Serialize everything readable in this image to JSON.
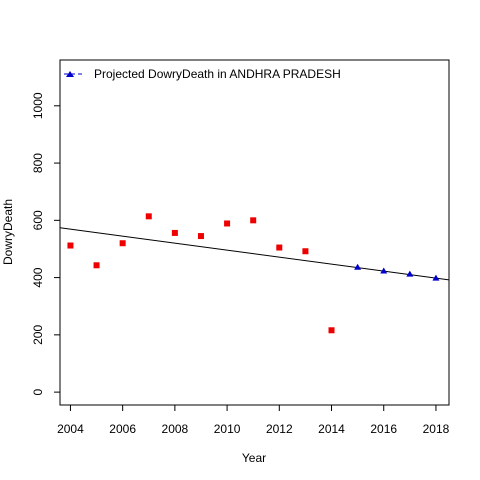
{
  "chart_data": {
    "type": "scatter",
    "title": "",
    "xlabel": "Year",
    "ylabel": "DowryDeath",
    "xlim": [
      2003.6,
      2018.5
    ],
    "ylim": [
      -45,
      1160
    ],
    "x_ticks": [
      2004,
      2006,
      2008,
      2010,
      2012,
      2014,
      2016,
      2018
    ],
    "y_ticks": [
      0,
      200,
      400,
      600,
      800,
      1000
    ],
    "grid": false,
    "legend_position": "top-left",
    "series": [
      {
        "marker": "square",
        "color": "#ee0000",
        "x": [
          2004,
          2005,
          2006,
          2007,
          2008,
          2009,
          2010,
          2011,
          2012,
          2013,
          2014
        ],
        "y": [
          512,
          443,
          520,
          614,
          556,
          545,
          589,
          600,
          505,
          492,
          216
        ]
      },
      {
        "name": "Projected  DowryDeath  in  ANDHRA PRADESH",
        "marker": "triangle",
        "color": "#0000cc",
        "x": [
          2015,
          2016,
          2017,
          2018
        ],
        "y": [
          436,
          423,
          412,
          398
        ]
      }
    ],
    "trend_line": {
      "color": "#000000",
      "x": [
        2003.6,
        2018.5
      ],
      "y": [
        574,
        392
      ]
    }
  }
}
